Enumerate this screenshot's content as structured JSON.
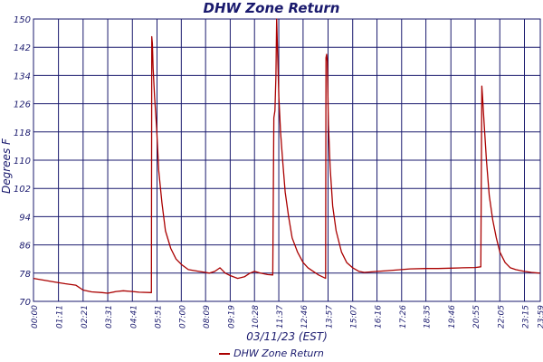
{
  "chart_data": {
    "type": "line",
    "title": "DHW Zone Return",
    "xlabel": "03/11/23 (EST)",
    "ylabel": "Degrees F",
    "ylim": [
      70,
      150
    ],
    "yticks": [
      70,
      78,
      86,
      94,
      102,
      110,
      118,
      126,
      134,
      142,
      150
    ],
    "xticks": [
      "00:00",
      "01:11",
      "02:21",
      "03:31",
      "04:41",
      "05:51",
      "07:00",
      "08:09",
      "09:19",
      "10:28",
      "11:37",
      "12:46",
      "13:57",
      "15:07",
      "16:16",
      "17:26",
      "18:35",
      "19:46",
      "20:55",
      "22:05",
      "23:15",
      "23:59"
    ],
    "grid": true,
    "legend_position": "bottom",
    "series": [
      {
        "name": "DHW Zone Return",
        "color": "#aa0000",
        "x": [
          "00:00",
          "00:30",
          "01:00",
          "01:30",
          "02:00",
          "02:21",
          "02:45",
          "03:15",
          "03:31",
          "03:55",
          "04:15",
          "04:41",
          "05:00",
          "05:35",
          "05:36",
          "05:38",
          "05:40",
          "05:44",
          "05:50",
          "05:56",
          "06:05",
          "06:15",
          "06:30",
          "06:45",
          "07:00",
          "07:20",
          "07:50",
          "08:09",
          "08:20",
          "08:35",
          "08:50",
          "09:05",
          "09:19",
          "09:40",
          "10:00",
          "10:15",
          "10:28",
          "10:45",
          "11:05",
          "11:20",
          "11:23",
          "11:26",
          "11:29",
          "11:31",
          "11:34",
          "11:37",
          "11:42",
          "11:48",
          "11:55",
          "12:05",
          "12:15",
          "12:30",
          "12:46",
          "13:00",
          "13:15",
          "13:30",
          "13:50",
          "13:51",
          "13:53",
          "13:55",
          "13:58",
          "14:03",
          "14:10",
          "14:20",
          "14:35",
          "14:50",
          "15:07",
          "15:25",
          "15:40",
          "16:16",
          "16:45",
          "17:26",
          "17:50",
          "18:35",
          "19:10",
          "19:46",
          "20:20",
          "20:55",
          "21:11",
          "21:14",
          "21:16",
          "21:20",
          "21:27",
          "21:35",
          "21:45",
          "21:55",
          "22:05",
          "22:20",
          "22:35",
          "22:50",
          "23:05",
          "23:15",
          "23:35",
          "23:59"
        ],
        "y": [
          76.5,
          76,
          75.5,
          75,
          74.6,
          73.2,
          72.7,
          72.5,
          72.3,
          72.8,
          73,
          72.8,
          72.6,
          72.5,
          145,
          143,
          136,
          128,
          119,
          107,
          98,
          90,
          85,
          82,
          80.5,
          79,
          78.5,
          78.2,
          78,
          78.5,
          79.5,
          78,
          77.3,
          76.5,
          77,
          78,
          78.5,
          78,
          77.6,
          77.5,
          122,
          124,
          134,
          150,
          139,
          128,
          118,
          110,
          101,
          94,
          88,
          84,
          81,
          79.5,
          78.5,
          77.5,
          76.5,
          139,
          140,
          138,
          120,
          108,
          97,
          90,
          84,
          81,
          79.5,
          78.5,
          78.2,
          78.5,
          78.7,
          79,
          79.2,
          79.3,
          79.3,
          79.4,
          79.5,
          79.6,
          79.8,
          131,
          128,
          121,
          110,
          100,
          93,
          88,
          84,
          81,
          79.5,
          79,
          78.7,
          78.5,
          78.2,
          78
        ]
      }
    ]
  }
}
